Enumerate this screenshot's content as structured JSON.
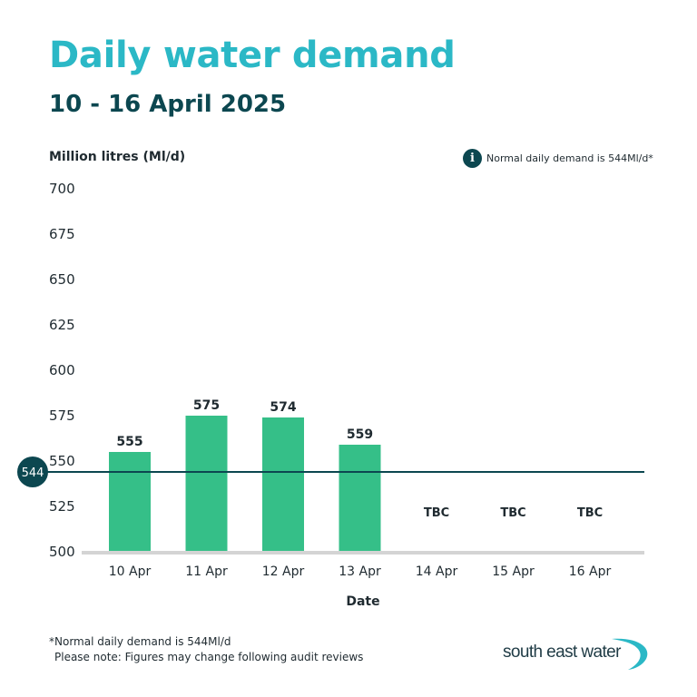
{
  "chart_data": {
    "type": "bar",
    "title": "Daily water demand",
    "subtitle": "10 - 16 April 2025",
    "ylabel": "Million litres (Ml/d)",
    "xlabel": "Date",
    "categories": [
      "10 Apr",
      "11 Apr",
      "12 Apr",
      "13 Apr",
      "14 Apr",
      "15 Apr",
      "16 Apr"
    ],
    "values": [
      555,
      575,
      574,
      559,
      null,
      null,
      null
    ],
    "value_labels": [
      "555",
      "575",
      "574",
      "559",
      "TBC",
      "TBC",
      "TBC"
    ],
    "ylim": [
      500,
      700
    ],
    "yticks": [
      500,
      525,
      550,
      575,
      600,
      625,
      650,
      675,
      700
    ],
    "reference_line": {
      "value": 544,
      "label": "544"
    },
    "bar_color": "#35bf88",
    "reference_color": "#0c4750"
  },
  "info_note": "Normal daily demand is 544Ml/d*",
  "footnote": {
    "line1": "*Normal daily demand is 544Ml/d",
    "line2": "Please note: Figures may change following audit reviews"
  },
  "brand": {
    "name": "south east water",
    "accent": "#2bb8c6"
  }
}
